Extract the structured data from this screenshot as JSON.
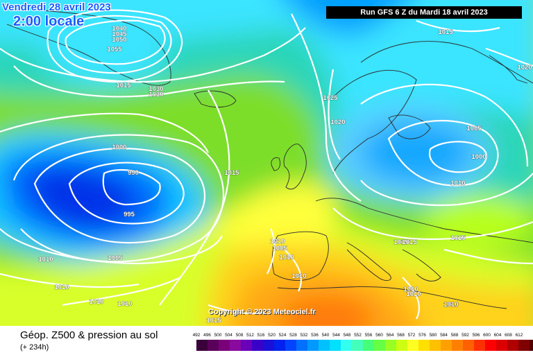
{
  "header": {
    "valid_date": "Vendredi 28 avril 2023",
    "valid_time": "2:00 locale",
    "run_info": "Run GFS 6 Z du Mardi 18 avril 2023"
  },
  "copyright": "Copyright © 2023 Meteociel.fr",
  "footer": {
    "title": "Géop. Z500 & pression au sol",
    "subtitle": "(+ 234h)"
  },
  "isobar_labels": [
    "1040",
    "1045",
    "1050",
    "1055",
    "1015",
    "1030",
    "1030",
    "1015",
    "1025",
    "1020",
    "1000",
    "990",
    "1015",
    "995",
    "1010",
    "1005",
    "1010",
    "1010",
    "1010",
    "1010",
    "1005",
    "1010",
    "1010",
    "1010",
    "1015",
    "1005",
    "1000",
    "1010",
    "1015",
    "1015",
    "1010",
    "1010",
    "1010",
    "1015",
    "1020"
  ],
  "scale": {
    "values": [
      "492",
      "496",
      "500",
      "504",
      "508",
      "512",
      "516",
      "520",
      "524",
      "528",
      "532",
      "536",
      "540",
      "544",
      "548",
      "552",
      "556",
      "560",
      "564",
      "568",
      "572",
      "576",
      "580",
      "584",
      "588",
      "592",
      "596",
      "600",
      "604",
      "608",
      "612"
    ],
    "colors": [
      "#3a003a",
      "#5a005a",
      "#7a007a",
      "#8a0aa0",
      "#6a00b8",
      "#3a00c8",
      "#1a10d8",
      "#0022ee",
      "#0044ff",
      "#0070ff",
      "#0099ff",
      "#00c0ff",
      "#00e0ff",
      "#33ffee",
      "#44ffbb",
      "#44ff77",
      "#66ff44",
      "#99ff22",
      "#ccff11",
      "#ffff22",
      "#ffe000",
      "#ffc000",
      "#ffa000",
      "#ff8000",
      "#ff6000",
      "#ff3000",
      "#ff0000",
      "#dd0000",
      "#b00000",
      "#800000",
      "#500000"
    ]
  }
}
